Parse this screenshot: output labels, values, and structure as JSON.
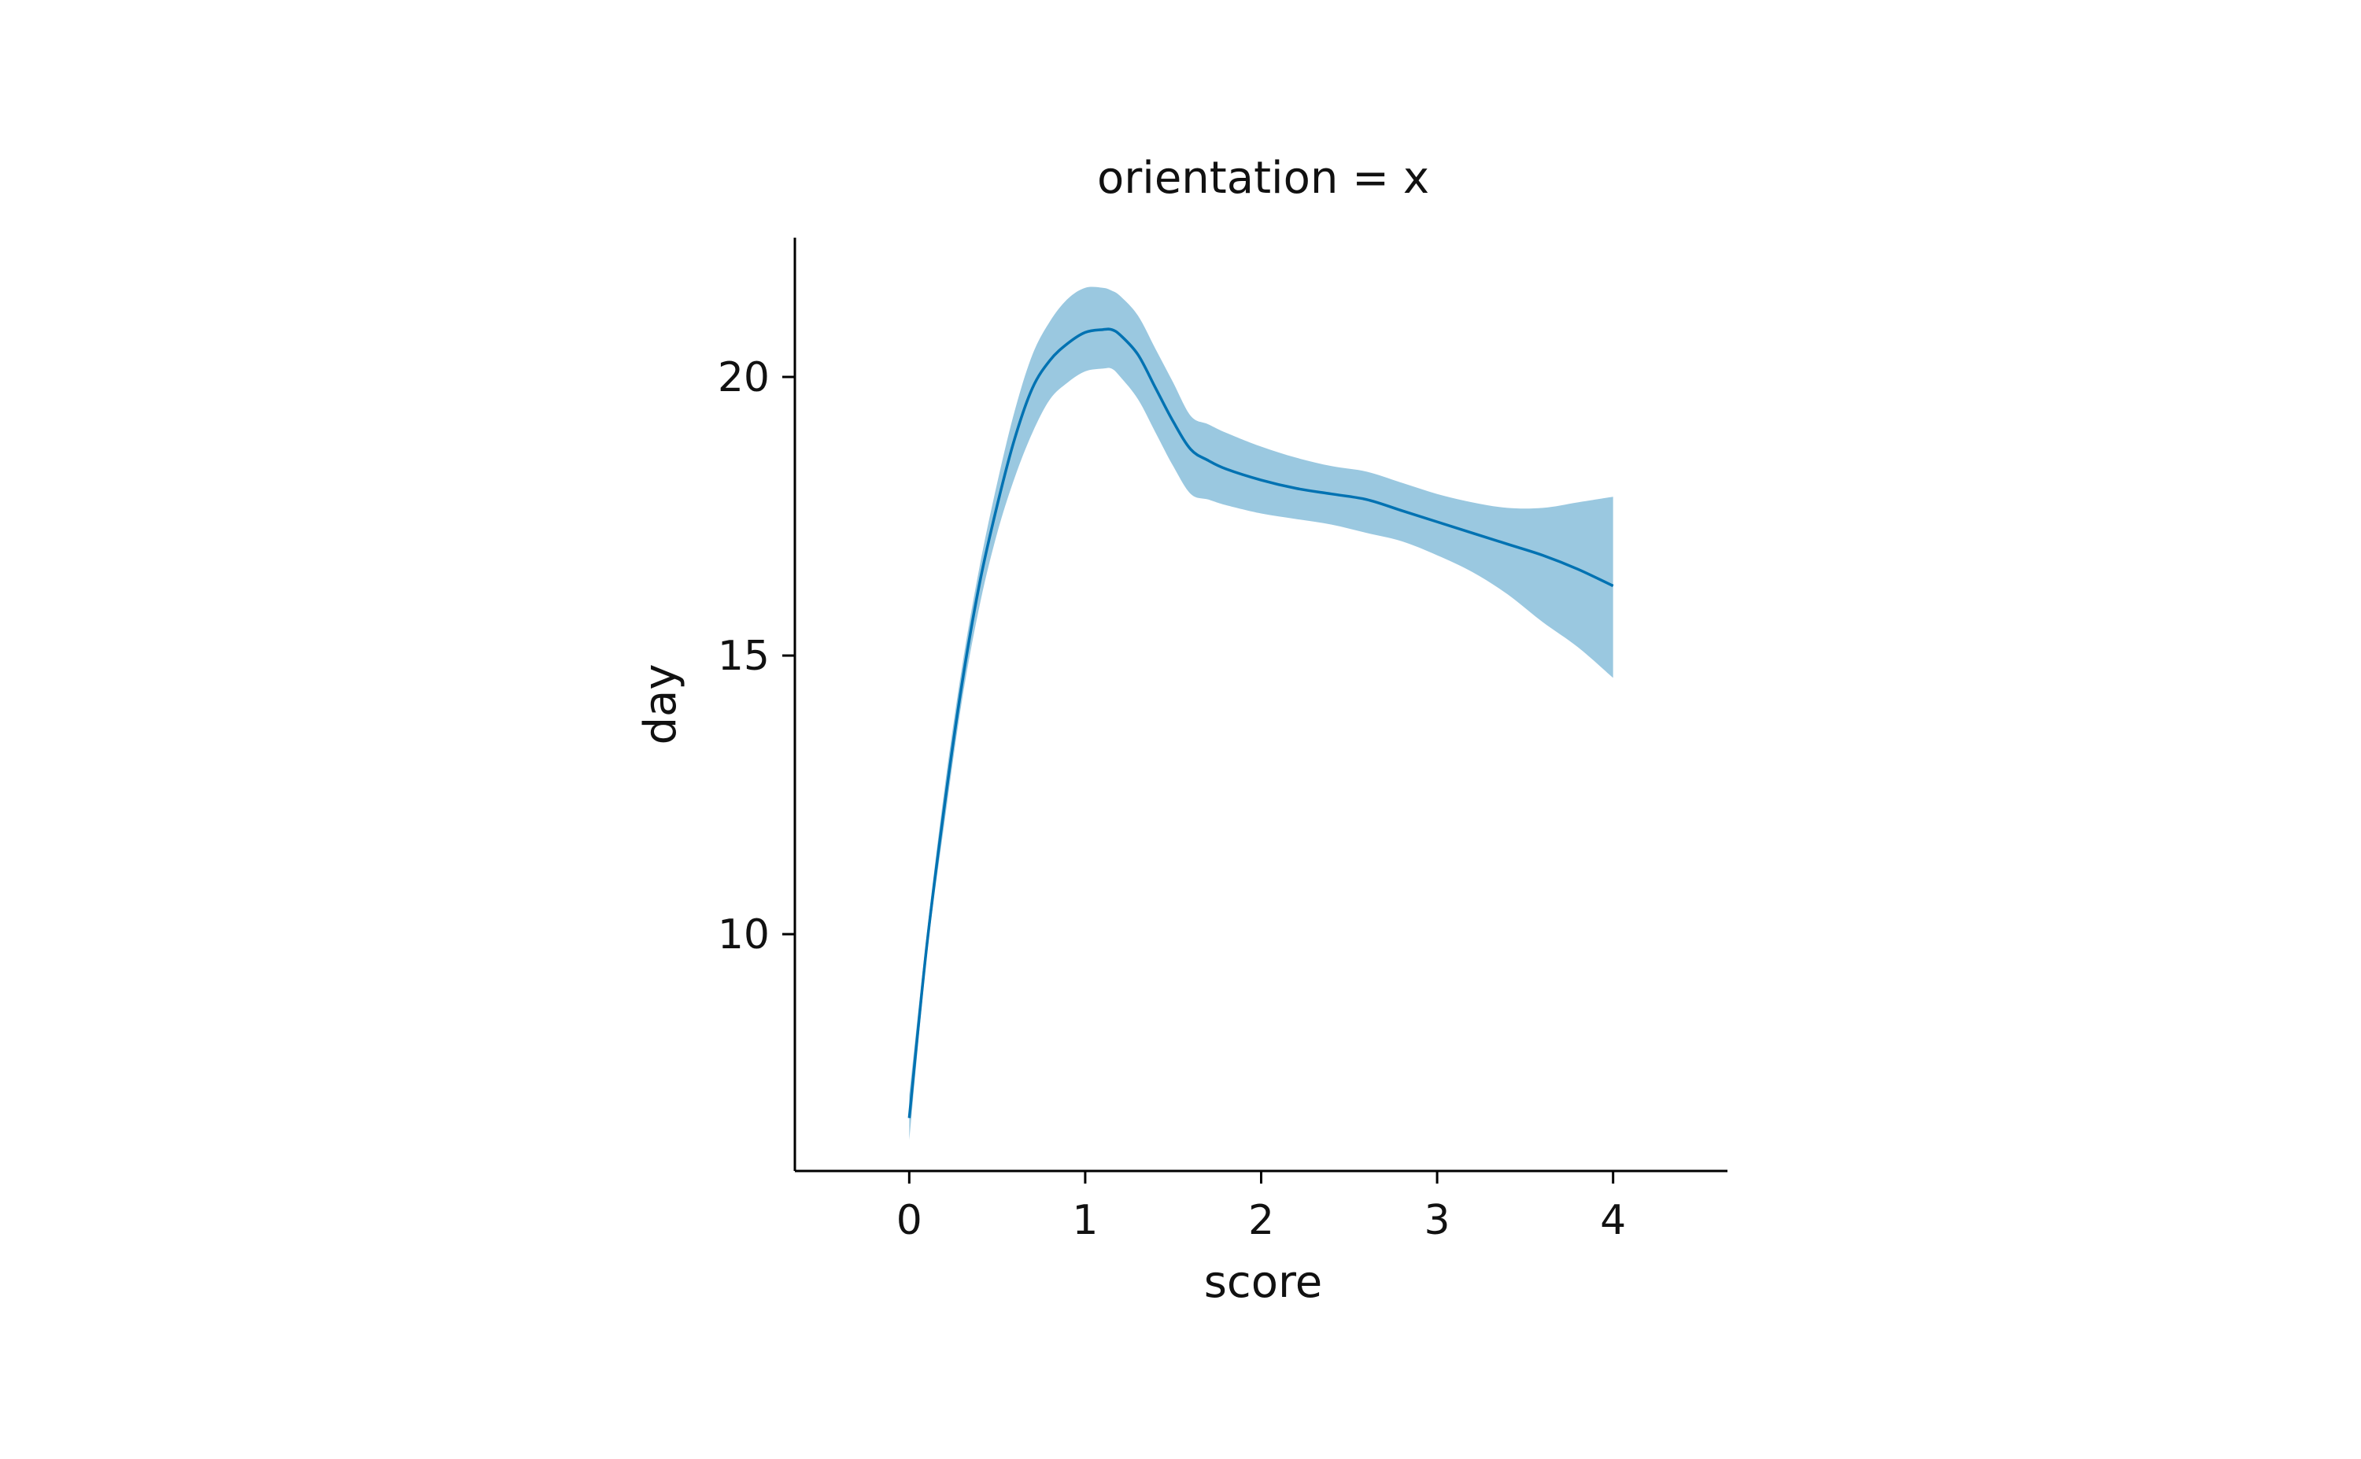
{
  "chart_data": {
    "type": "line",
    "title": "orientation = x",
    "xlabel": "score",
    "ylabel": "day",
    "xlim": [
      -0.65,
      4.65
    ],
    "ylim": [
      5.75,
      22.5
    ],
    "xticks": [
      0,
      1,
      2,
      3,
      4
    ],
    "yticks": [
      10,
      15,
      20
    ],
    "grid": false,
    "line_color": "#0072b2",
    "band_color": "#9ac8e0",
    "series": [
      {
        "x": [
          0,
          0.1,
          0.2,
          0.3,
          0.4,
          0.5,
          0.6,
          0.7,
          0.8,
          0.9,
          1.0,
          1.1,
          1.15,
          1.2,
          1.3,
          1.4,
          1.5,
          1.6,
          1.7,
          1.8,
          2.0,
          2.2,
          2.4,
          2.6,
          2.8,
          3.0,
          3.2,
          3.4,
          3.6,
          3.8,
          4.0
        ],
        "y": [
          6.7,
          9.8,
          12.3,
          14.5,
          16.3,
          17.7,
          18.9,
          19.8,
          20.3,
          20.6,
          20.8,
          20.85,
          20.85,
          20.75,
          20.4,
          19.8,
          19.2,
          18.7,
          18.5,
          18.35,
          18.15,
          18.0,
          17.9,
          17.8,
          17.6,
          17.4,
          17.2,
          17.0,
          16.8,
          16.55,
          16.25
        ],
        "lower": [
          6.3,
          9.6,
          12.0,
          14.2,
          15.9,
          17.2,
          18.2,
          19.0,
          19.6,
          19.9,
          20.1,
          20.15,
          20.15,
          20.0,
          19.6,
          19.0,
          18.4,
          17.9,
          17.8,
          17.7,
          17.55,
          17.45,
          17.35,
          17.2,
          17.05,
          16.8,
          16.5,
          16.1,
          15.6,
          15.15,
          14.6
        ],
        "upper": [
          7.1,
          10.0,
          12.6,
          14.8,
          16.6,
          18.1,
          19.4,
          20.4,
          21.0,
          21.4,
          21.6,
          21.6,
          21.55,
          21.45,
          21.1,
          20.5,
          19.9,
          19.3,
          19.15,
          19.0,
          18.75,
          18.55,
          18.4,
          18.3,
          18.1,
          17.9,
          17.75,
          17.65,
          17.65,
          17.75,
          17.85
        ]
      }
    ]
  }
}
